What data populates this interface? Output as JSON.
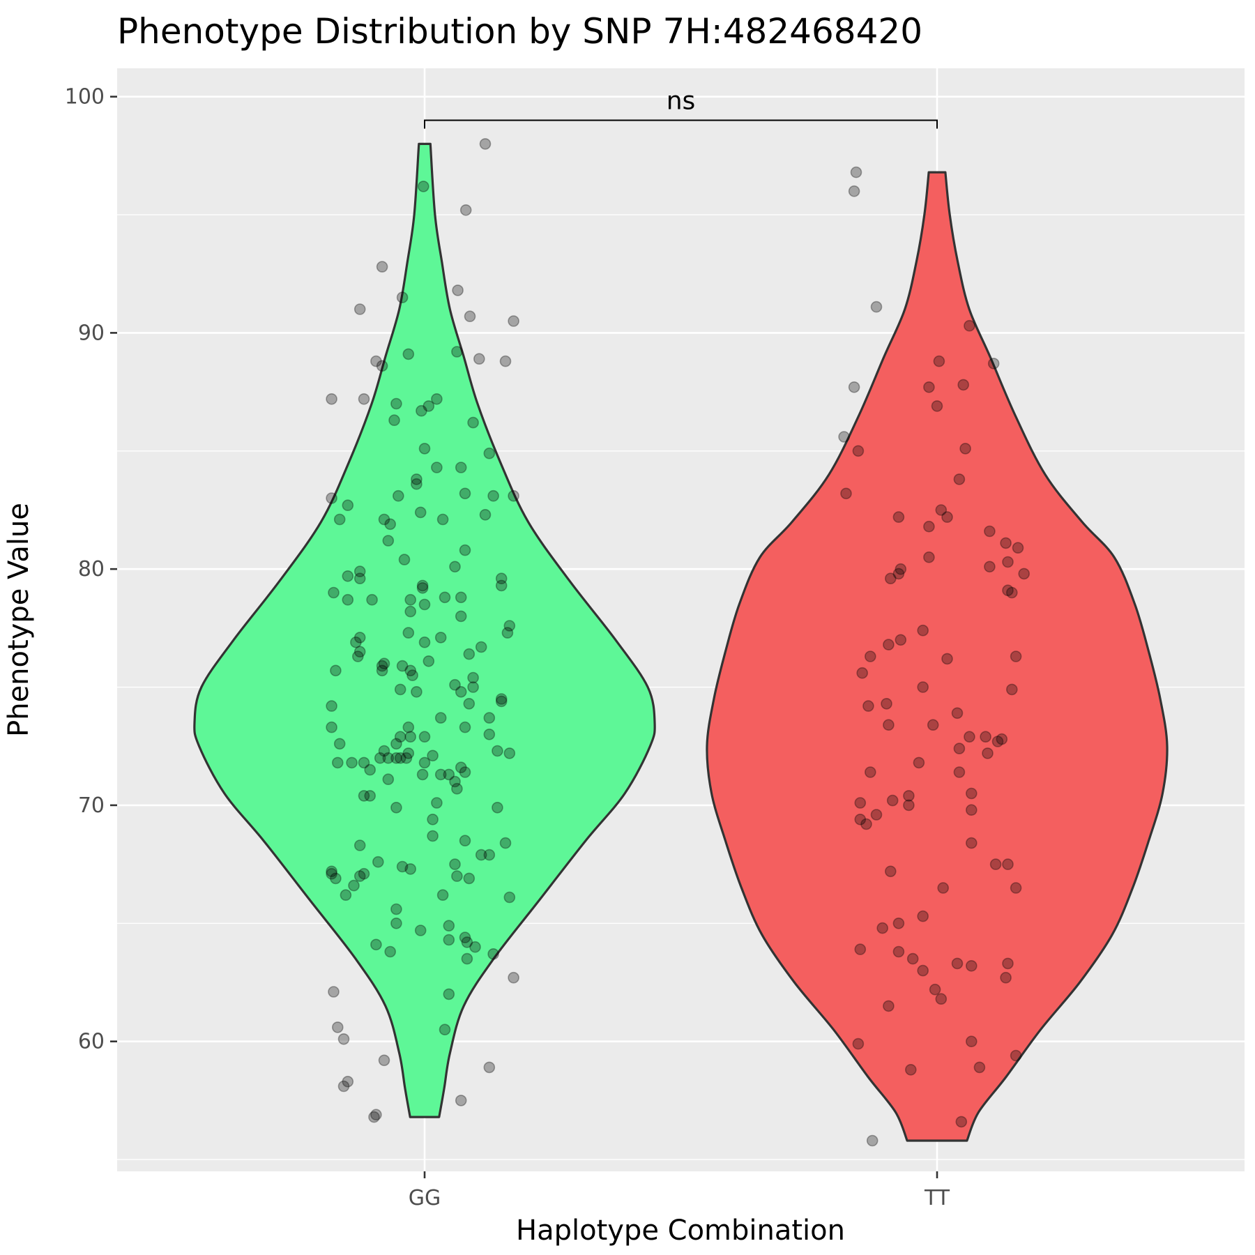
{
  "chart_data": {
    "type": "violin",
    "title": "Phenotype Distribution by SNP 7H:482468420",
    "xlabel": "Haplotype Combination",
    "ylabel": "Phenotype Value",
    "categories": [
      "GG",
      "TT"
    ],
    "ylim": [
      54.5,
      101.2
    ],
    "yticks": [
      60,
      70,
      80,
      90,
      100
    ],
    "grid": true,
    "legend": "none",
    "colors": {
      "GG": "#5ef797",
      "TT": "#f45f5f",
      "panel": "#ebebeb",
      "outline": "#333333",
      "points": "#000000"
    },
    "significance": {
      "groups": [
        "GG",
        "TT"
      ],
      "label": "ns",
      "y": 99.0
    },
    "violins": [
      {
        "name": "GG",
        "min": 56.8,
        "max": 98.0,
        "density": [
          [
            56.8,
            0.063
          ],
          [
            58.0,
            0.085
          ],
          [
            59.5,
            0.11
          ],
          [
            61.5,
            0.17
          ],
          [
            63.5,
            0.3
          ],
          [
            66.0,
            0.5
          ],
          [
            68.5,
            0.7
          ],
          [
            70.5,
            0.87
          ],
          [
            72.5,
            0.98
          ],
          [
            73.5,
            1.0
          ],
          [
            75.0,
            0.97
          ],
          [
            77.0,
            0.83
          ],
          [
            79.5,
            0.63
          ],
          [
            82.0,
            0.45
          ],
          [
            84.5,
            0.33
          ],
          [
            87.0,
            0.23
          ],
          [
            89.0,
            0.17
          ],
          [
            91.0,
            0.11
          ],
          [
            93.0,
            0.075
          ],
          [
            95.0,
            0.045
          ],
          [
            98.0,
            0.025
          ]
        ],
        "points": [
          [
            1.5,
            98.0
          ],
          [
            -0.03,
            96.2
          ],
          [
            1.02,
            95.2
          ],
          [
            -1.05,
            92.8
          ],
          [
            -0.55,
            91.5
          ],
          [
            0.82,
            91.8
          ],
          [
            -1.6,
            91.0
          ],
          [
            1.12,
            90.7
          ],
          [
            2.2,
            90.5
          ],
          [
            -0.4,
            89.1
          ],
          [
            0.8,
            89.2
          ],
          [
            1.35,
            88.9
          ],
          [
            2.0,
            88.8
          ],
          [
            -1.2,
            88.8
          ],
          [
            -1.05,
            88.6
          ],
          [
            -2.3,
            87.2
          ],
          [
            -1.5,
            87.2
          ],
          [
            0.3,
            87.2
          ],
          [
            -0.7,
            87.0
          ],
          [
            0.1,
            86.9
          ],
          [
            -0.08,
            86.7
          ],
          [
            1.2,
            86.2
          ],
          [
            -0.75,
            86.3
          ],
          [
            0.0,
            85.1
          ],
          [
            1.6,
            84.9
          ],
          [
            0.3,
            84.3
          ],
          [
            0.9,
            84.3
          ],
          [
            -0.2,
            83.8
          ],
          [
            -0.2,
            83.6
          ],
          [
            -2.3,
            83.0
          ],
          [
            -1.9,
            82.7
          ],
          [
            -0.65,
            83.1
          ],
          [
            1.0,
            83.2
          ],
          [
            1.7,
            83.1
          ],
          [
            2.2,
            83.1
          ],
          [
            -0.1,
            82.4
          ],
          [
            -2.1,
            82.1
          ],
          [
            -1.0,
            82.1
          ],
          [
            -0.85,
            81.9
          ],
          [
            0.45,
            82.1
          ],
          [
            1.5,
            82.3
          ],
          [
            -0.9,
            81.2
          ],
          [
            1.0,
            80.8
          ],
          [
            -0.5,
            80.4
          ],
          [
            0.75,
            80.1
          ],
          [
            -1.6,
            79.9
          ],
          [
            -1.6,
            79.6
          ],
          [
            -1.9,
            79.7
          ],
          [
            -2.25,
            79.0
          ],
          [
            -0.05,
            79.2
          ],
          [
            1.9,
            79.6
          ],
          [
            1.9,
            79.3
          ],
          [
            0.5,
            78.8
          ],
          [
            0.9,
            78.8
          ],
          [
            -1.9,
            78.7
          ],
          [
            -1.3,
            78.7
          ],
          [
            -0.35,
            78.7
          ],
          [
            0.0,
            78.5
          ],
          [
            -0.35,
            78.2
          ],
          [
            0.9,
            78.0
          ],
          [
            2.1,
            77.6
          ],
          [
            2.05,
            77.3
          ],
          [
            -0.4,
            77.3
          ],
          [
            0.4,
            77.1
          ],
          [
            -1.6,
            77.1
          ],
          [
            -1.7,
            76.9
          ],
          [
            0.0,
            76.9
          ],
          [
            1.4,
            76.7
          ],
          [
            1.1,
            76.4
          ],
          [
            -1.65,
            76.3
          ],
          [
            -1.6,
            76.5
          ],
          [
            0.1,
            76.1
          ],
          [
            -1.0,
            76.0
          ],
          [
            -1.05,
            75.9
          ],
          [
            -0.55,
            75.9
          ],
          [
            -0.35,
            75.7
          ],
          [
            -1.05,
            75.7
          ],
          [
            -2.2,
            75.7
          ],
          [
            -0.3,
            75.5
          ],
          [
            1.2,
            75.4
          ],
          [
            0.75,
            75.1
          ],
          [
            1.2,
            75.0
          ],
          [
            -0.2,
            74.8
          ],
          [
            -0.6,
            74.9
          ],
          [
            0.9,
            74.8
          ],
          [
            1.9,
            74.5
          ],
          [
            1.9,
            74.4
          ],
          [
            1.1,
            74.3
          ],
          [
            -2.3,
            74.2
          ],
          [
            0.4,
            73.7
          ],
          [
            1.6,
            73.7
          ],
          [
            -2.3,
            73.3
          ],
          [
            -0.4,
            73.3
          ],
          [
            1.0,
            73.3
          ],
          [
            1.6,
            73.0
          ],
          [
            -0.6,
            72.9
          ],
          [
            -0.35,
            72.9
          ],
          [
            0.0,
            72.9
          ],
          [
            -2.1,
            72.6
          ],
          [
            -0.7,
            72.6
          ],
          [
            -1.0,
            72.3
          ],
          [
            -0.4,
            72.2
          ],
          [
            0.2,
            72.1
          ],
          [
            1.8,
            72.3
          ],
          [
            2.1,
            72.2
          ],
          [
            -1.1,
            72.0
          ],
          [
            -0.9,
            72.0
          ],
          [
            -0.7,
            72.0
          ],
          [
            -0.6,
            72.0
          ],
          [
            -0.45,
            72.0
          ],
          [
            -1.8,
            71.8
          ],
          [
            -2.15,
            71.8
          ],
          [
            -1.5,
            71.8
          ],
          [
            0.0,
            71.8
          ],
          [
            0.9,
            71.6
          ],
          [
            1.0,
            71.4
          ],
          [
            -1.35,
            71.5
          ],
          [
            0.4,
            71.3
          ],
          [
            0.6,
            71.3
          ],
          [
            -0.05,
            71.3
          ],
          [
            -0.9,
            71.1
          ],
          [
            0.75,
            71.0
          ],
          [
            0.8,
            70.7
          ],
          [
            -1.5,
            70.4
          ],
          [
            -1.35,
            70.4
          ],
          [
            0.3,
            70.1
          ],
          [
            -0.7,
            69.9
          ],
          [
            1.8,
            69.9
          ],
          [
            0.2,
            69.4
          ],
          [
            0.2,
            68.7
          ],
          [
            -1.6,
            68.3
          ],
          [
            1.0,
            68.5
          ],
          [
            2.0,
            68.4
          ],
          [
            1.4,
            67.9
          ],
          [
            1.6,
            67.9
          ],
          [
            -1.15,
            67.6
          ],
          [
            -0.55,
            67.4
          ],
          [
            -0.35,
            67.3
          ],
          [
            0.75,
            67.5
          ],
          [
            -2.3,
            67.2
          ],
          [
            -2.3,
            67.1
          ],
          [
            -2.2,
            66.9
          ],
          [
            -1.5,
            67.1
          ],
          [
            -1.6,
            67.0
          ],
          [
            0.8,
            67.0
          ],
          [
            1.1,
            66.9
          ],
          [
            -1.75,
            66.6
          ],
          [
            -1.95,
            66.2
          ],
          [
            0.45,
            66.2
          ],
          [
            2.1,
            66.1
          ],
          [
            -0.7,
            65.6
          ],
          [
            -0.7,
            65.0
          ],
          [
            0.6,
            64.9
          ],
          [
            -0.1,
            64.7
          ],
          [
            1.0,
            64.4
          ],
          [
            1.05,
            64.2
          ],
          [
            0.6,
            64.3
          ],
          [
            1.25,
            64.0
          ],
          [
            -1.2,
            64.1
          ],
          [
            -0.85,
            63.8
          ],
          [
            1.7,
            63.7
          ],
          [
            1.05,
            63.5
          ],
          [
            2.2,
            62.7
          ],
          [
            -2.25,
            62.1
          ],
          [
            0.6,
            62.0
          ],
          [
            -2.15,
            60.6
          ],
          [
            0.5,
            60.5
          ],
          [
            -2.0,
            60.1
          ],
          [
            -1.0,
            59.2
          ],
          [
            1.6,
            58.9
          ],
          [
            -1.9,
            58.3
          ],
          [
            -2.0,
            58.1
          ],
          [
            0.9,
            57.5
          ],
          [
            -1.2,
            56.9
          ],
          [
            -1.25,
            56.8
          ],
          [
            -0.05,
            79.3
          ]
        ]
      },
      {
        "name": "TT",
        "min": 55.8,
        "max": 96.8,
        "density": [
          [
            55.8,
            0.13
          ],
          [
            57.0,
            0.18
          ],
          [
            58.5,
            0.3
          ],
          [
            60.5,
            0.45
          ],
          [
            62.5,
            0.62
          ],
          [
            64.5,
            0.76
          ],
          [
            66.5,
            0.85
          ],
          [
            68.5,
            0.92
          ],
          [
            70.5,
            0.98
          ],
          [
            72.5,
            1.0
          ],
          [
            74.5,
            0.97
          ],
          [
            76.5,
            0.92
          ],
          [
            78.5,
            0.86
          ],
          [
            80.5,
            0.77
          ],
          [
            82.0,
            0.63
          ],
          [
            84.0,
            0.47
          ],
          [
            86.5,
            0.34
          ],
          [
            89.0,
            0.23
          ],
          [
            91.0,
            0.14
          ],
          [
            93.0,
            0.09
          ],
          [
            95.0,
            0.055
          ],
          [
            96.8,
            0.036
          ]
        ],
        "points": [
          [
            -2.0,
            96.8
          ],
          [
            -2.05,
            96.0
          ],
          [
            -1.5,
            91.1
          ],
          [
            0.8,
            90.3
          ],
          [
            1.4,
            88.7
          ],
          [
            0.05,
            88.8
          ],
          [
            -0.2,
            87.7
          ],
          [
            0.65,
            87.8
          ],
          [
            -2.05,
            87.7
          ],
          [
            0.0,
            86.9
          ],
          [
            -2.3,
            85.6
          ],
          [
            -1.95,
            85.0
          ],
          [
            0.7,
            85.1
          ],
          [
            0.55,
            83.8
          ],
          [
            -2.25,
            83.2
          ],
          [
            0.1,
            82.5
          ],
          [
            0.25,
            82.2
          ],
          [
            -0.95,
            82.2
          ],
          [
            -0.2,
            81.8
          ],
          [
            1.3,
            81.6
          ],
          [
            1.7,
            81.1
          ],
          [
            2.0,
            80.9
          ],
          [
            1.75,
            80.3
          ],
          [
            -0.2,
            80.5
          ],
          [
            -0.9,
            80.0
          ],
          [
            -0.95,
            79.8
          ],
          [
            1.3,
            80.1
          ],
          [
            2.15,
            79.8
          ],
          [
            -1.15,
            79.6
          ],
          [
            1.75,
            79.1
          ],
          [
            1.85,
            79.0
          ],
          [
            -0.35,
            77.4
          ],
          [
            -0.9,
            77.0
          ],
          [
            -1.2,
            76.8
          ],
          [
            -1.65,
            76.3
          ],
          [
            0.25,
            76.2
          ],
          [
            1.95,
            76.3
          ],
          [
            -1.85,
            75.6
          ],
          [
            -0.35,
            75.0
          ],
          [
            1.85,
            74.9
          ],
          [
            -1.7,
            74.2
          ],
          [
            -1.25,
            74.3
          ],
          [
            0.5,
            73.9
          ],
          [
            -1.2,
            73.4
          ],
          [
            -0.1,
            73.4
          ],
          [
            0.8,
            72.9
          ],
          [
            1.2,
            72.9
          ],
          [
            1.6,
            72.8
          ],
          [
            1.5,
            72.7
          ],
          [
            0.55,
            72.4
          ],
          [
            1.25,
            72.2
          ],
          [
            -0.45,
            71.8
          ],
          [
            -1.65,
            71.4
          ],
          [
            0.55,
            71.4
          ],
          [
            0.85,
            70.5
          ],
          [
            -0.7,
            70.4
          ],
          [
            -1.1,
            70.2
          ],
          [
            -0.7,
            70.0
          ],
          [
            -1.9,
            70.1
          ],
          [
            0.85,
            69.8
          ],
          [
            -1.5,
            69.6
          ],
          [
            -1.9,
            69.4
          ],
          [
            -1.75,
            69.2
          ],
          [
            0.85,
            68.4
          ],
          [
            1.45,
            67.5
          ],
          [
            1.75,
            67.5
          ],
          [
            -1.15,
            67.2
          ],
          [
            0.15,
            66.5
          ],
          [
            1.95,
            66.5
          ],
          [
            -0.35,
            65.3
          ],
          [
            -0.95,
            65.0
          ],
          [
            -1.35,
            64.8
          ],
          [
            -1.9,
            63.9
          ],
          [
            -0.95,
            63.8
          ],
          [
            -0.6,
            63.5
          ],
          [
            0.5,
            63.3
          ],
          [
            0.85,
            63.2
          ],
          [
            1.75,
            63.3
          ],
          [
            -0.35,
            63.0
          ],
          [
            1.7,
            62.7
          ],
          [
            -0.05,
            62.2
          ],
          [
            0.1,
            61.8
          ],
          [
            -1.2,
            61.5
          ],
          [
            0.85,
            60.0
          ],
          [
            -1.95,
            59.9
          ],
          [
            1.95,
            59.4
          ],
          [
            1.05,
            58.9
          ],
          [
            -0.65,
            58.8
          ],
          [
            0.6,
            56.6
          ],
          [
            -1.6,
            55.8
          ]
        ]
      }
    ]
  }
}
